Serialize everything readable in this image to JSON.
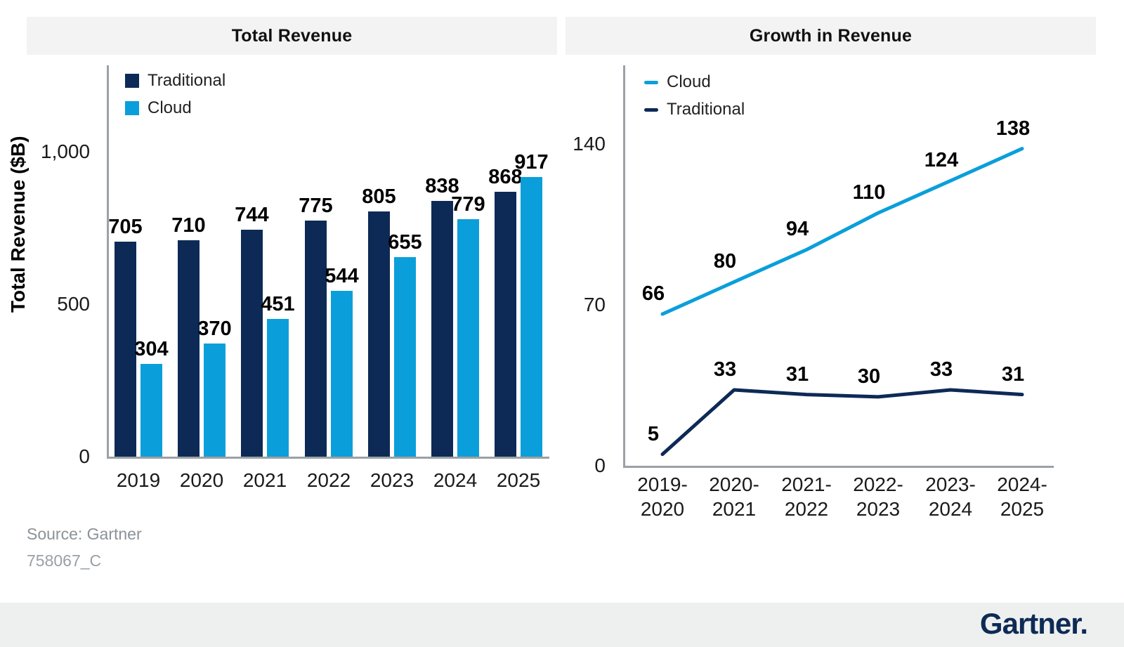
{
  "colors": {
    "traditional_navy": "#0d2a56",
    "cloud_blue": "#0a9fda",
    "header_bg": "#f2f3f2",
    "axis_gray": "#9ba1a5",
    "tick_text": "#1a1a1a",
    "value_text": "#000000",
    "source_text": "#8b9298",
    "logo_navy": "#0e2b55"
  },
  "footer": {
    "source": "Source: Gartner",
    "code": "758067_C",
    "logo_text": "Gartner."
  },
  "chart_data": [
    {
      "type": "bar",
      "title": "Total Revenue",
      "categories": [
        "2019",
        "2020",
        "2021",
        "2022",
        "2023",
        "2024",
        "2025"
      ],
      "series": [
        {
          "name": "Traditional",
          "color": "#0d2a56",
          "values": [
            705,
            710,
            744,
            775,
            805,
            838,
            868
          ]
        },
        {
          "name": "Cloud",
          "color": "#0a9fda",
          "values": [
            304,
            370,
            451,
            544,
            655,
            779,
            917
          ]
        }
      ],
      "xlabel": "",
      "ylabel": "Total Revenue ($B)",
      "yticks": [
        0,
        500,
        1000
      ],
      "ytick_labels": [
        "0",
        "500",
        "1,000"
      ],
      "ylim": [
        0,
        1290
      ],
      "grid": false,
      "legend_position": "top-left-inside",
      "data_labels": true
    },
    {
      "type": "line",
      "title": "Growth in Revenue",
      "categories": [
        "2019-2020",
        "2020-2021",
        "2021-2022",
        "2022-2023",
        "2023-2024",
        "2024-2025"
      ],
      "series": [
        {
          "name": "Cloud",
          "color": "#0a9fda",
          "values": [
            66,
            80,
            94,
            110,
            124,
            138
          ]
        },
        {
          "name": "Traditional",
          "color": "#0d2a56",
          "values": [
            5,
            33,
            31,
            30,
            33,
            31
          ]
        }
      ],
      "xlabel": "",
      "ylabel": "",
      "yticks": [
        0,
        70,
        140
      ],
      "ytick_labels": [
        "0",
        "70",
        "140"
      ],
      "ylim": [
        0,
        176
      ],
      "grid": false,
      "legend_position": "top-left-inside",
      "data_labels": true
    }
  ]
}
